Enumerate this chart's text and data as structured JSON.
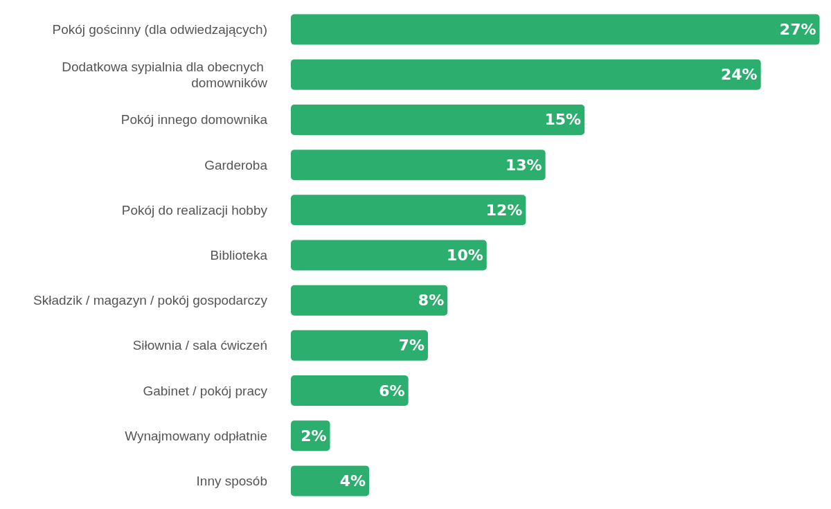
{
  "chart_data": {
    "type": "bar",
    "orientation": "horizontal",
    "value_labels": [
      "27%",
      "24%",
      "15%",
      "13%",
      "12%",
      "10%",
      "8%",
      "7%",
      "6%",
      "2%",
      "4%"
    ],
    "categories": [
      "Pokój gościnny (dla odwiedzających)",
      "Dodatkowa sypialnia dla obecnych domowników",
      "Pokój innego domownika",
      "Garderoba",
      "Pokój do realizacji hobby",
      "Biblioteka",
      "Składzik / magazyn / pokój gospodarczy",
      "Siłownia / sala ćwiczeń",
      "Gabinet / pokój pracy",
      "Wynajmowany odpłatnie",
      "Inny sposób"
    ],
    "values": [
      27,
      24,
      15,
      13,
      12,
      10,
      8,
      7,
      6,
      2,
      4
    ],
    "color": "#2caf6e"
  }
}
